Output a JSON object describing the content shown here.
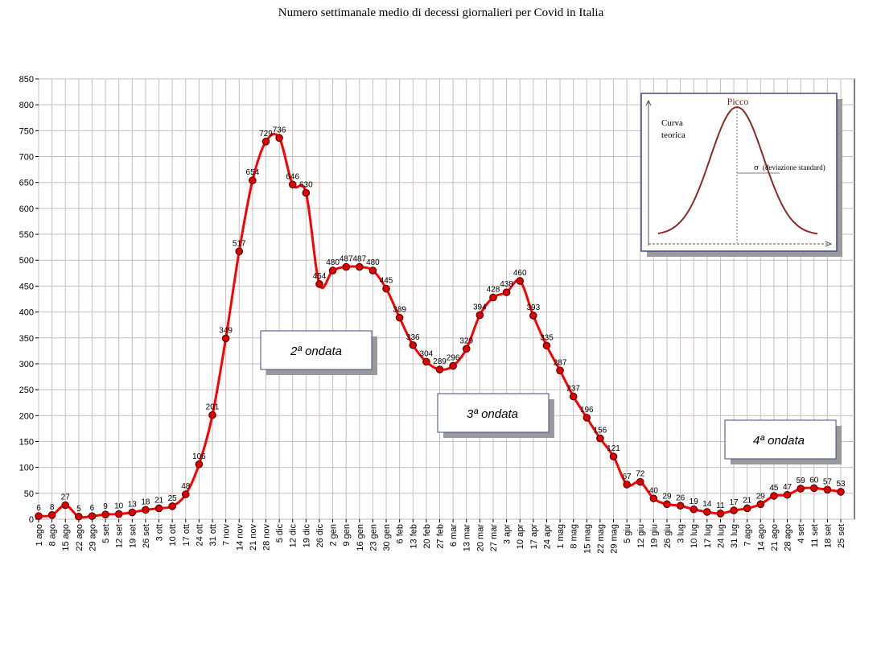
{
  "chart_data": {
    "type": "line",
    "title": "Numero settimanale medio di decessi giornalieri per Covid in Italia",
    "ylim": [
      0,
      850
    ],
    "yticks": [
      0,
      50,
      100,
      150,
      200,
      250,
      300,
      350,
      400,
      450,
      500,
      550,
      600,
      650,
      700,
      750,
      800,
      850
    ],
    "grid": true,
    "categories": [
      "1 ago",
      "8 ago",
      "15 ago",
      "22 ago",
      "29 ago",
      "5 set",
      "12 set",
      "19 set",
      "26 set",
      "3 ott",
      "10 ott",
      "17 ott",
      "24 ott",
      "31 ott",
      "7 nov",
      "14 nov",
      "21 nov",
      "28 nov",
      "5 dic",
      "12 dic",
      "19 dic",
      "26 dic",
      "2 gen",
      "9 gen",
      "16 gen",
      "23 gen",
      "30 gen",
      "6 feb",
      "13 feb",
      "20 feb",
      "27 feb",
      "6 mar",
      "13 mar",
      "20 mar",
      "27 mar",
      "3 apr",
      "10 apr",
      "17 apr",
      "24 apr",
      "1 mag",
      "8 mag",
      "15 mag",
      "22 mag",
      "29 mag",
      "5 giu",
      "12 giu",
      "19 giu",
      "26 giu",
      "3 lug",
      "10 lug",
      "17 lug",
      "24 lug",
      "31 lug",
      "7 ago",
      "14 ago",
      "21 ago",
      "28 ago",
      "4 set",
      "11 set",
      "18 set",
      "25 set"
    ],
    "values": [
      6,
      8,
      27,
      5,
      6,
      9,
      10,
      13,
      18,
      21,
      25,
      48,
      106,
      201,
      349,
      517,
      654,
      729,
      736,
      646,
      630,
      454,
      480,
      487,
      487,
      480,
      445,
      389,
      336,
      304,
      289,
      296,
      329,
      394,
      428,
      438,
      460,
      393,
      335,
      287,
      237,
      196,
      156,
      121,
      67,
      72,
      40,
      29,
      26,
      19,
      14,
      11,
      17,
      21,
      29,
      45,
      47,
      59,
      60,
      57,
      53
    ],
    "line_color": "#ff0000",
    "marker_color": "#dd0000",
    "annotations": [
      "2ª ondata",
      "3ª ondata",
      "4ª ondata"
    ]
  },
  "inset": {
    "curve_label_1": "Curva",
    "curve_label_2": "teorica",
    "peak_label": "Picco",
    "sigma_symbol": "σ",
    "sigma_label": "(deviazione standard)",
    "curve_color": "#8b2a2a"
  }
}
